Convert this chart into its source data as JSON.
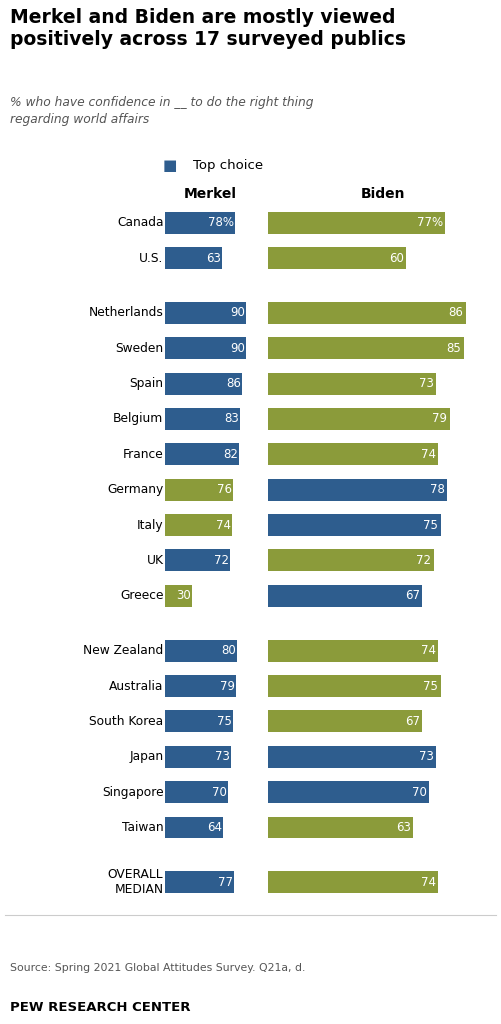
{
  "title": "Merkel and Biden are mostly viewed\npositively across 17 surveyed publics",
  "subtitle": "% who have confidence in __ to do the right thing\nregarding world affairs",
  "legend_label": "Top choice",
  "col_headers": [
    "Merkel",
    "Biden"
  ],
  "source": "Source: Spring 2021 Global Attitudes Survey. Q21a, d.",
  "footer": "PEW RESEARCH CENTER",
  "blue_color": "#2E5D8E",
  "olive_color": "#8B9B3A",
  "groups": [
    {
      "countries": [
        "Canada",
        "U.S."
      ],
      "merkel": [
        78,
        63
      ],
      "biden": [
        77,
        60
      ],
      "merkel_top": [
        true,
        true
      ],
      "biden_top": [
        false,
        false
      ]
    },
    {
      "countries": [
        "Netherlands",
        "Sweden",
        "Spain",
        "Belgium",
        "France",
        "Germany",
        "Italy",
        "UK",
        "Greece"
      ],
      "merkel": [
        90,
        90,
        86,
        83,
        82,
        76,
        74,
        72,
        30
      ],
      "biden": [
        86,
        85,
        73,
        79,
        74,
        78,
        75,
        72,
        67
      ],
      "merkel_top": [
        true,
        true,
        true,
        true,
        true,
        false,
        false,
        true,
        false
      ],
      "biden_top": [
        false,
        false,
        false,
        false,
        false,
        true,
        true,
        false,
        true
      ]
    },
    {
      "countries": [
        "New Zealand",
        "Australia",
        "South Korea",
        "Japan",
        "Singapore",
        "Taiwan"
      ],
      "merkel": [
        80,
        79,
        75,
        73,
        70,
        64
      ],
      "biden": [
        74,
        75,
        67,
        73,
        70,
        63
      ],
      "merkel_top": [
        true,
        true,
        true,
        true,
        true,
        true
      ],
      "biden_top": [
        false,
        false,
        false,
        true,
        true,
        false
      ]
    }
  ],
  "median_label": "OVERALL\nMEDIAN",
  "median_merkel": 77,
  "median_biden": 74,
  "median_merkel_top": true,
  "median_biden_top": false,
  "merkel_labels": [
    "78%",
    "63",
    "90",
    "90",
    "86",
    "83",
    "82",
    "76",
    "74",
    "72",
    "30",
    "80",
    "79",
    "75",
    "73",
    "70",
    "64",
    "77"
  ],
  "biden_labels": [
    "77%",
    "60",
    "86",
    "85",
    "73",
    "79",
    "74",
    "78",
    "75",
    "72",
    "67",
    "74",
    "75",
    "67",
    "73",
    "70",
    "63",
    "74"
  ]
}
